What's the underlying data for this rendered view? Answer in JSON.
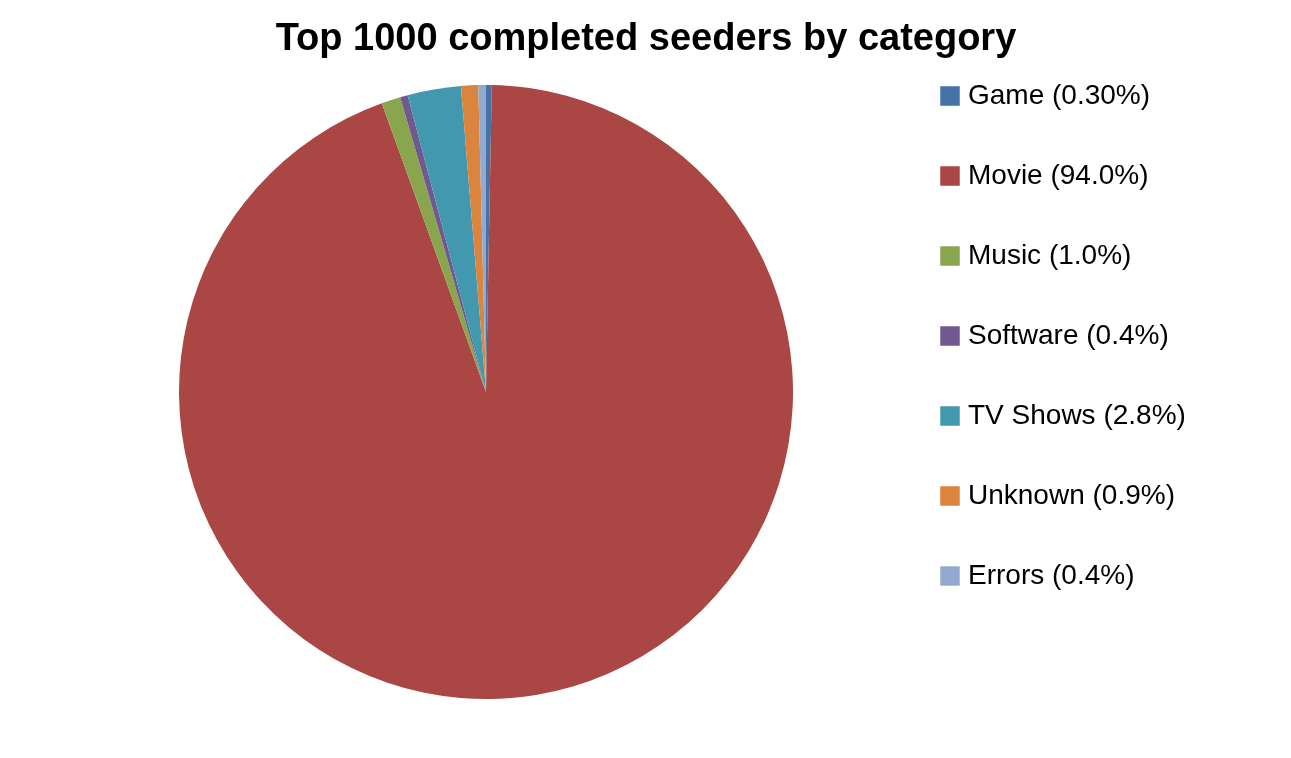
{
  "chart_data": {
    "type": "pie",
    "title": "Top 1000 completed seeders by category",
    "categories": [
      "Game (0.30%)",
      "Movie (94.0%)",
      "Music (1.0%)",
      "Software (0.4%)",
      "TV Shows (2.8%)",
      "Unknown (0.9%)",
      "Errors (0.4%)"
    ],
    "values": [
      0.3,
      94.0,
      1.0,
      0.4,
      2.8,
      0.9,
      0.4
    ],
    "colors": [
      "#4572a7",
      "#aa4643",
      "#89a54e",
      "#71588f",
      "#4198af",
      "#db843d",
      "#93a9cf"
    ],
    "legend": "right"
  }
}
